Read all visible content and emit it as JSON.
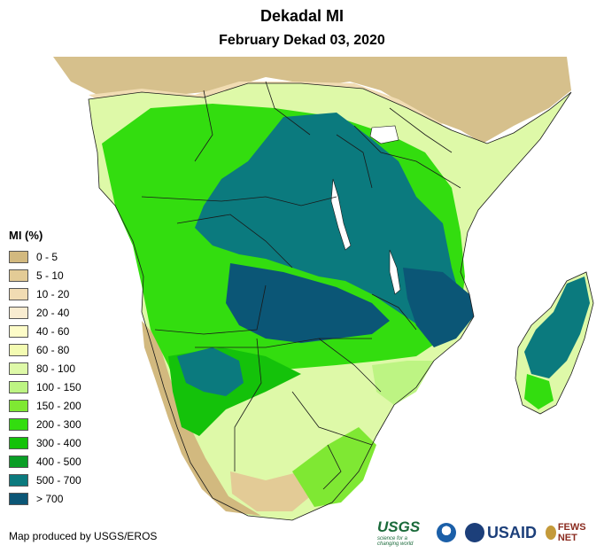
{
  "title": "Dekadal MI",
  "subtitle": "February Dekad 03, 2020",
  "legend": {
    "title": "MI (%)",
    "items": [
      {
        "label": "0 - 5",
        "color": "#d2b97f"
      },
      {
        "label": "5 - 10",
        "color": "#e3cb96"
      },
      {
        "label": "10 - 20",
        "color": "#f1dcb3"
      },
      {
        "label": "20 - 40",
        "color": "#f8ecd0"
      },
      {
        "label": "40 - 60",
        "color": "#fdfcc8"
      },
      {
        "label": "60 - 80",
        "color": "#f3fbb2"
      },
      {
        "label": "80 - 100",
        "color": "#def9a8"
      },
      {
        "label": "100 - 150",
        "color": "#bdf483"
      },
      {
        "label": "150 - 200",
        "color": "#7fe833"
      },
      {
        "label": "200 - 300",
        "color": "#33dd0f"
      },
      {
        "label": "300 - 400",
        "color": "#14c20a"
      },
      {
        "label": "400 - 500",
        "color": "#0a9e26"
      },
      {
        "label": "500 - 700",
        "color": "#0b7a7e"
      },
      {
        "label": "> 700",
        "color": "#0b5676"
      }
    ]
  },
  "colors": {
    "ocean": "#ffffff",
    "no_data": "#d4bd86",
    "border": "#1a1a1a",
    "lake": "#ffffff"
  },
  "credit": "Map produced by USGS/EROS",
  "logos": {
    "usgs": "USGS",
    "usgs_tagline": "science for a changing world",
    "usaid": "USAID",
    "fews": "FEWS NET"
  }
}
